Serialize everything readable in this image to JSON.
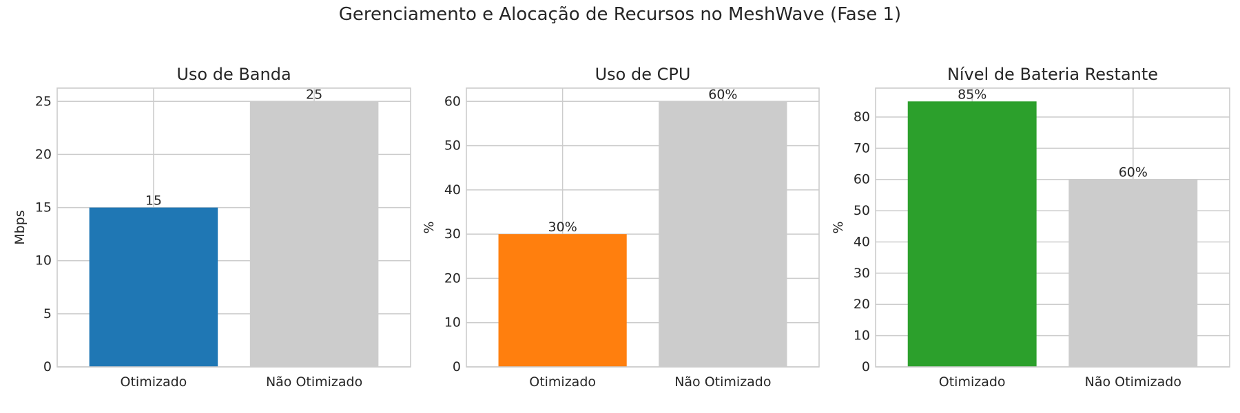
{
  "figure": {
    "title": "Gerenciamento e Alocação de Recursos no MeshWave (Fase 1)"
  },
  "chart_data": [
    {
      "type": "bar",
      "title": "Uso de Banda",
      "xlabel": "",
      "ylabel": "Mbps",
      "categories": [
        "Otimizado",
        "Não Otimizado"
      ],
      "values": [
        15,
        25
      ],
      "value_labels": [
        "15",
        "25"
      ],
      "colors": [
        "#1f77b4",
        "#cccccc"
      ],
      "ylim": [
        0,
        26.25
      ],
      "yticks": [
        0,
        5,
        10,
        15,
        20,
        25
      ],
      "grid": true
    },
    {
      "type": "bar",
      "title": "Uso de CPU",
      "xlabel": "",
      "ylabel": "%",
      "categories": [
        "Otimizado",
        "Não Otimizado"
      ],
      "values": [
        30,
        60
      ],
      "value_labels": [
        "30%",
        "60%"
      ],
      "colors": [
        "#ff7f0e",
        "#cccccc"
      ],
      "ylim": [
        0,
        63
      ],
      "yticks": [
        0,
        10,
        20,
        30,
        40,
        50,
        60
      ],
      "grid": true
    },
    {
      "type": "bar",
      "title": "Nível de Bateria Restante",
      "xlabel": "",
      "ylabel": "%",
      "categories": [
        "Otimizado",
        "Não Otimizado"
      ],
      "values": [
        85,
        60
      ],
      "value_labels": [
        "85%",
        "60%"
      ],
      "colors": [
        "#2ca02c",
        "#cccccc"
      ],
      "ylim": [
        0,
        89.25
      ],
      "yticks": [
        0,
        10,
        20,
        30,
        40,
        50,
        60,
        70,
        80
      ],
      "grid": true
    }
  ]
}
